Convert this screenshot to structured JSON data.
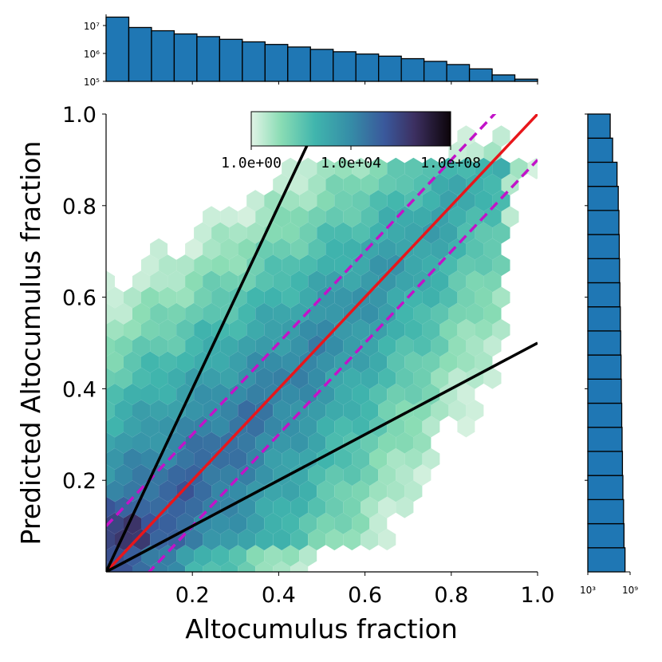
{
  "chart_data": {
    "type": "hexbin",
    "xlabel": "Altocumulus fraction",
    "ylabel": "Predicted Altocumulus fraction",
    "xlim": [
      0,
      1.0
    ],
    "ylim": [
      0,
      1.0
    ],
    "x_ticks": [
      "0.2",
      "0.4",
      "0.6",
      "0.8",
      "1.0"
    ],
    "y_ticks": [
      "0.2",
      "0.4",
      "0.6",
      "0.8",
      "1.0"
    ],
    "grid": false,
    "colorbar": {
      "scale": "log",
      "colormap": "mako_r (light green to near-black)",
      "placement": "top-center inside plot",
      "tick_labels": [
        "1.0e+00",
        "1.0e+04",
        "1.0e+08"
      ]
    },
    "reference_lines": [
      {
        "description": "1:1 line",
        "slope": 1.0,
        "intercept": 0.0,
        "color": "#e8161b",
        "style": "solid"
      },
      {
        "description": "+0.1 offset",
        "slope": 1.0,
        "intercept": 0.1,
        "color": "#c213c8",
        "style": "dashed"
      },
      {
        "description": "-0.1 offset",
        "slope": 1.0,
        "intercept": -0.1,
        "color": "#c213c8",
        "style": "dashed"
      },
      {
        "description": "factor 2 upper",
        "slope": 2.0,
        "intercept": 0.0,
        "color": "#000000",
        "style": "solid"
      },
      {
        "description": "factor 2 lower",
        "slope": 0.5,
        "intercept": 0.0,
        "color": "#000000",
        "style": "solid"
      }
    ],
    "top_histogram": {
      "scale": "log",
      "tick_labels": [
        "10⁵",
        "10⁶",
        "10⁷"
      ],
      "bins": 19,
      "counts": [
        20000000,
        8500000,
        6500000,
        5000000,
        4000000,
        3200000,
        2600000,
        2100000,
        1700000,
        1400000,
        1150000,
        950000,
        800000,
        650000,
        520000,
        400000,
        280000,
        170000,
        120000
      ],
      "color": "#1f77b4"
    },
    "right_histogram": {
      "scale": "log",
      "tick_labels": [
        "10³",
        "10⁹"
      ],
      "bins": 19,
      "counts": [
        190000000,
        136000000,
        118000000,
        95000000,
        82000000,
        73000000,
        65000000,
        57000000,
        52000000,
        46000000,
        41000000,
        36000000,
        32000000,
        29000000,
        26000000,
        21000000,
        14000000,
        3300000,
        1500000
      ],
      "color": "#1f77b4"
    }
  }
}
